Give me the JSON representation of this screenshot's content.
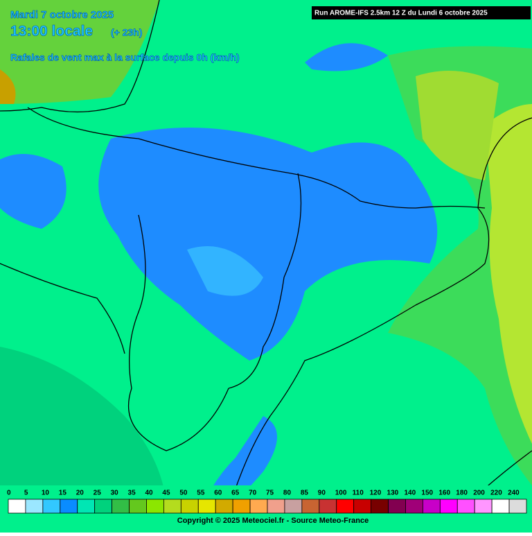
{
  "header": {
    "date": "Mardi 7 octobre 2025",
    "time": "13:00 locale",
    "offset": "(+ 23h)",
    "subtitle": "Rafales de vent max à la surface depuis 0h (km/h)"
  },
  "run": "Run AROME-IFS 2.5km 12 Z du Lundi 6 octobre 2025",
  "legend": {
    "labels": [
      0,
      5,
      10,
      15,
      20,
      25,
      30,
      35,
      40,
      45,
      50,
      55,
      60,
      65,
      70,
      75,
      80,
      85,
      90,
      100,
      110,
      120,
      130,
      140,
      150,
      160,
      180,
      200,
      220,
      240
    ],
    "colors": [
      "#ffffff",
      "#9be7ff",
      "#32c8ff",
      "#0a8cff",
      "#00e6b4",
      "#00d27d",
      "#32be46",
      "#64c81e",
      "#8ce600",
      "#b4dc1e",
      "#c8d200",
      "#e6e600",
      "#d2aa00",
      "#f0a000",
      "#ffaa50",
      "#f0a08c",
      "#c8a0a0",
      "#c86432",
      "#c83232",
      "#ff0000",
      "#c80000",
      "#780000",
      "#820050",
      "#a00078",
      "#c800c8",
      "#ff00ff",
      "#ff50ff",
      "#ff96ff",
      "#ffffff",
      "#dcdcdc"
    ]
  },
  "copyright": "Copyright © 2025 Meteociel.fr - Source Meteo-France"
}
